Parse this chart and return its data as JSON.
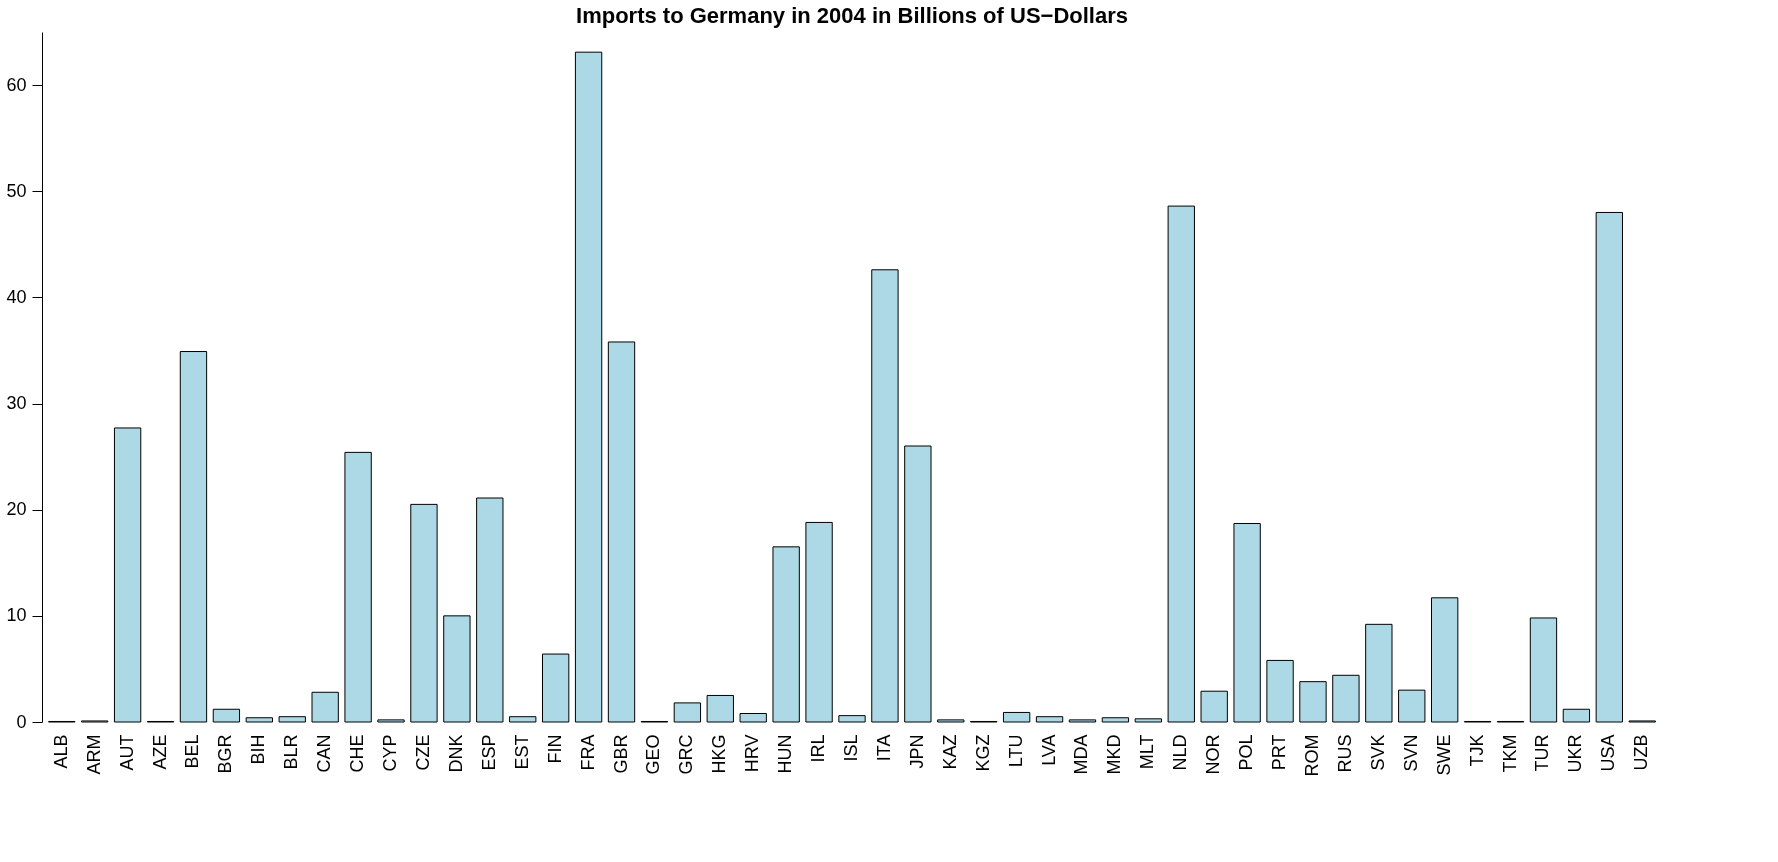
{
  "chart_data": {
    "type": "bar",
    "title": "Imports to Germany in 2004 in Billions of US−Dollars",
    "categories": [
      "ALB",
      "ARM",
      "AUT",
      "AZE",
      "BEL",
      "BGR",
      "BIH",
      "BLR",
      "CAN",
      "CHE",
      "CYP",
      "CZE",
      "DNK",
      "ESP",
      "EST",
      "FIN",
      "FRA",
      "GBR",
      "GEO",
      "GRC",
      "HKG",
      "HRV",
      "HUN",
      "IRL",
      "ISL",
      "ITA",
      "JPN",
      "KAZ",
      "KGZ",
      "LTU",
      "LVA",
      "MDA",
      "MKD",
      "MLT",
      "NLD",
      "NOR",
      "POL",
      "PRT",
      "ROM",
      "RUS",
      "SVK",
      "SVN",
      "SWE",
      "TJK",
      "TKM",
      "TUR",
      "UKR",
      "USA",
      "UZB"
    ],
    "values": [
      0.05,
      0.1,
      27.7,
      0.05,
      34.9,
      1.2,
      0.4,
      0.5,
      2.8,
      25.4,
      0.2,
      20.5,
      10.0,
      21.1,
      0.5,
      6.4,
      63.1,
      35.8,
      0.05,
      1.8,
      2.5,
      0.8,
      16.5,
      18.8,
      0.6,
      42.6,
      26.0,
      0.2,
      0.05,
      0.9,
      0.5,
      0.2,
      0.4,
      0.3,
      48.6,
      2.9,
      18.7,
      5.8,
      3.8,
      4.4,
      9.2,
      3.0,
      11.7,
      0.05,
      0.05,
      9.8,
      1.2,
      48.0,
      0.1
    ],
    "color": "#add8e6",
    "ylim": [
      0,
      65
    ],
    "yticks": [
      0,
      10,
      20,
      30,
      40,
      50,
      60
    ],
    "grid": false
  }
}
